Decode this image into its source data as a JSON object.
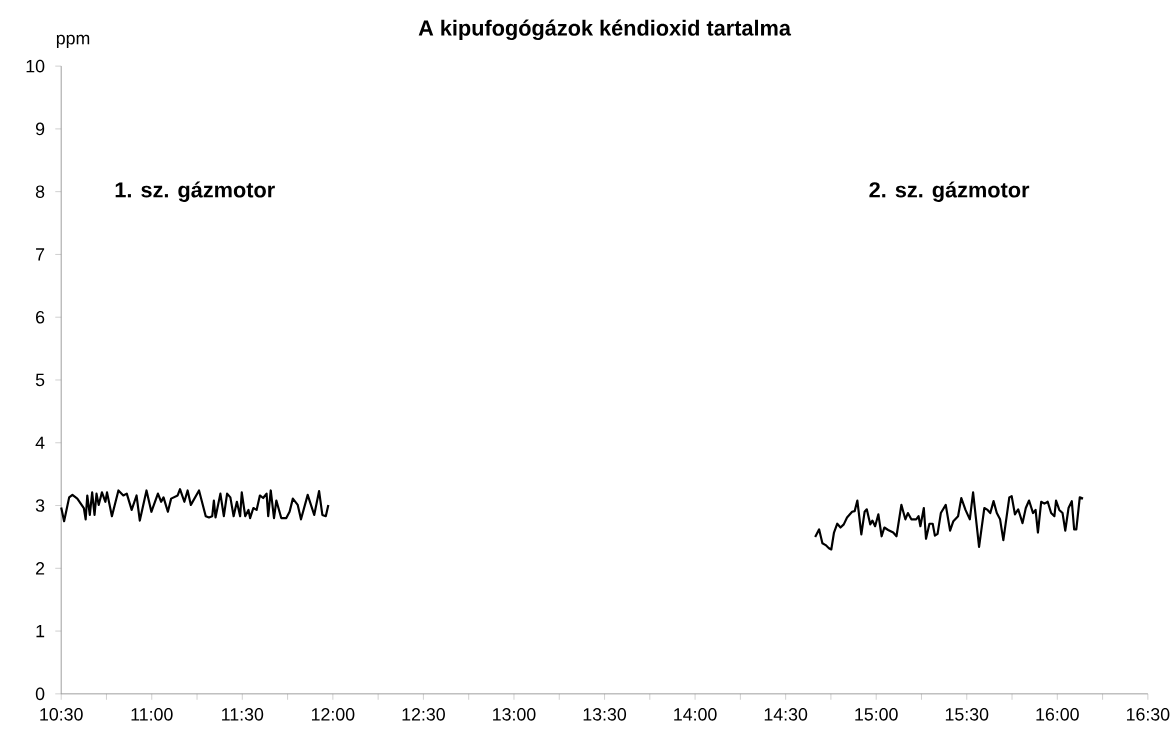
{
  "chart_data": {
    "type": "line",
    "title": "A kipufogógázok kéndioxid tartalma",
    "ylabel": "ppm",
    "xlim": [
      10.5,
      16.5
    ],
    "xticks": [
      {
        "value": 10.5,
        "label": "10:30"
      },
      {
        "value": 11,
        "label": "11:00"
      },
      {
        "value": 11.5,
        "label": "11:30"
      },
      {
        "value": 12,
        "label": "12:00"
      },
      {
        "value": 12.5,
        "label": "12:30"
      },
      {
        "value": 13,
        "label": "13:00"
      },
      {
        "value": 13.5,
        "label": "13:30"
      },
      {
        "value": 14,
        "label": "14:00"
      },
      {
        "value": 14.5,
        "label": "14:30"
      },
      {
        "value": 15,
        "label": "15:00"
      },
      {
        "value": 15.5,
        "label": "15:30"
      },
      {
        "value": 16,
        "label": "16:00"
      },
      {
        "value": 16.5,
        "label": "16:30"
      }
    ],
    "ylim": [
      0,
      10
    ],
    "yticks": [
      0,
      1,
      2,
      3,
      4,
      5,
      6,
      7,
      8,
      9,
      10
    ],
    "annotations": [
      "1. sz. gázmotor",
      "2. sz. gázmotor"
    ],
    "grid": false,
    "marker": "none",
    "line_style": "solid",
    "series": [
      {
        "color": "#000000",
        "x": [
          10.5,
          10.516,
          10.544,
          10.562,
          10.589,
          10.625,
          10.635,
          10.644,
          10.658,
          10.671,
          10.684,
          10.695,
          10.707,
          10.725,
          10.744,
          10.753,
          10.78,
          10.816,
          10.843,
          10.862,
          10.889,
          10.916,
          10.934,
          10.971,
          10.998,
          11.034,
          11.052,
          11.065,
          11.089,
          11.107,
          11.143,
          11.156,
          11.18,
          11.198,
          11.216,
          11.261,
          11.298,
          11.316,
          11.334,
          11.343,
          11.352,
          11.379,
          11.398,
          11.416,
          11.434,
          11.452,
          11.47,
          11.488,
          11.497,
          11.516,
          11.534,
          11.543,
          11.561,
          11.579,
          11.597,
          11.615,
          11.634,
          11.643,
          11.657,
          11.675,
          11.688,
          11.715,
          11.743,
          11.761,
          11.779,
          11.806,
          11.824,
          11.861,
          11.897,
          11.924,
          11.942,
          11.961,
          11.975
        ],
        "values": [
          2.97,
          2.75,
          3.13,
          3.17,
          3.11,
          2.96,
          2.78,
          3.16,
          2.85,
          3.21,
          2.85,
          3.19,
          3.01,
          3.21,
          3.06,
          3.21,
          2.83,
          3.24,
          3.16,
          3.19,
          2.93,
          3.16,
          2.76,
          3.24,
          2.9,
          3.19,
          3.06,
          3.13,
          2.9,
          3.11,
          3.16,
          3.26,
          3.06,
          3.24,
          3.01,
          3.24,
          2.83,
          2.81,
          2.83,
          3.08,
          2.81,
          3.19,
          2.83,
          3.19,
          3.13,
          2.83,
          3.06,
          2.83,
          3.21,
          2.83,
          2.93,
          2.8,
          2.96,
          2.93,
          3.16,
          3.12,
          3.19,
          2.83,
          3.24,
          2.8,
          3.08,
          2.8,
          2.8,
          2.9,
          3.11,
          3.01,
          2.78,
          3.17,
          2.85,
          3.23,
          2.85,
          2.83,
          3.01
        ]
      },
      {
        "color": "#000000",
        "x": [
          14.663,
          14.685,
          14.703,
          14.721,
          14.739,
          14.752,
          14.767,
          14.785,
          14.803,
          14.821,
          14.839,
          14.867,
          14.881,
          14.896,
          14.918,
          14.936,
          14.948,
          14.967,
          14.979,
          14.994,
          15.012,
          15.03,
          15.045,
          15.066,
          15.094,
          15.112,
          15.139,
          15.161,
          15.175,
          15.194,
          15.221,
          15.234,
          15.244,
          15.263,
          15.275,
          15.294,
          15.312,
          15.324,
          15.339,
          15.357,
          15.384,
          15.408,
          15.426,
          15.452,
          15.47,
          15.493,
          15.517,
          15.535,
          15.568,
          15.597,
          15.615,
          15.63,
          15.648,
          15.666,
          15.684,
          15.702,
          15.735,
          15.748,
          15.766,
          15.784,
          15.808,
          15.826,
          15.844,
          15.866,
          15.88,
          15.893,
          15.911,
          15.929,
          15.947,
          15.966,
          15.984,
          15.993,
          16.011,
          16.029,
          16.044,
          16.062,
          16.08,
          16.093,
          16.105,
          16.124,
          16.142
        ],
        "values": [
          2.5,
          2.62,
          2.4,
          2.37,
          2.32,
          2.3,
          2.57,
          2.71,
          2.65,
          2.7,
          2.81,
          2.9,
          2.91,
          3.08,
          2.54,
          2.9,
          2.94,
          2.7,
          2.76,
          2.67,
          2.86,
          2.51,
          2.65,
          2.61,
          2.57,
          2.51,
          3.01,
          2.78,
          2.88,
          2.78,
          2.78,
          2.83,
          2.67,
          2.96,
          2.47,
          2.71,
          2.71,
          2.52,
          2.55,
          2.88,
          3.01,
          2.6,
          2.75,
          2.83,
          3.12,
          2.93,
          2.78,
          3.21,
          2.34,
          2.96,
          2.93,
          2.88,
          3.07,
          2.88,
          2.78,
          2.45,
          3.13,
          3.15,
          2.86,
          2.94,
          2.72,
          2.96,
          3.08,
          2.88,
          2.93,
          2.57,
          3.06,
          3.03,
          3.06,
          2.88,
          2.83,
          3.08,
          2.93,
          2.88,
          2.6,
          2.96,
          3.07,
          2.62,
          2.62,
          3.13,
          3.11
        ]
      }
    ]
  }
}
